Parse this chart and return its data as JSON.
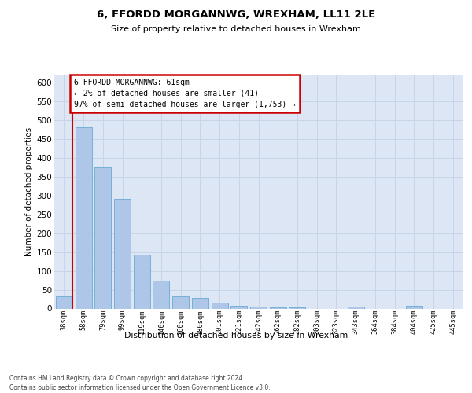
{
  "title_line1": "6, FFORDD MORGANNWG, WREXHAM, LL11 2LE",
  "title_line2": "Size of property relative to detached houses in Wrexham",
  "xlabel": "Distribution of detached houses by size in Wrexham",
  "ylabel": "Number of detached properties",
  "bar_color": "#aec6e8",
  "bar_edge_color": "#6aaad4",
  "highlight_color": "#cc0000",
  "categories": [
    "38sqm",
    "58sqm",
    "79sqm",
    "99sqm",
    "119sqm",
    "140sqm",
    "160sqm",
    "180sqm",
    "201sqm",
    "221sqm",
    "242sqm",
    "262sqm",
    "282sqm",
    "303sqm",
    "323sqm",
    "343sqm",
    "364sqm",
    "384sqm",
    "404sqm",
    "425sqm",
    "445sqm"
  ],
  "values": [
    32,
    480,
    375,
    290,
    143,
    75,
    33,
    28,
    15,
    8,
    5,
    4,
    3,
    0,
    0,
    5,
    0,
    0,
    8,
    0,
    0
  ],
  "annotation_line1": "6 FFORDD MORGANNWG: 61sqm",
  "annotation_line2": "← 2% of detached houses are smaller (41)",
  "annotation_line3": "97% of semi-detached houses are larger (1,753) →",
  "ylim_max": 620,
  "yticks": [
    0,
    50,
    100,
    150,
    200,
    250,
    300,
    350,
    400,
    450,
    500,
    550,
    600
  ],
  "grid_color": "#c8d4e8",
  "bg_color": "#dce6f5",
  "footer": "Contains HM Land Registry data © Crown copyright and database right 2024.\nContains public sector information licensed under the Open Government Licence v3.0."
}
